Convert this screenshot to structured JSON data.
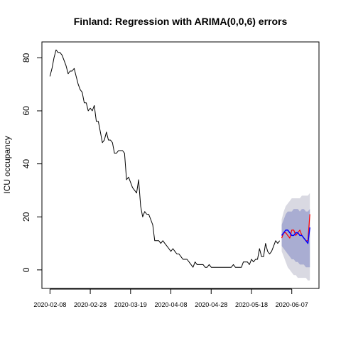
{
  "chart_data": {
    "type": "line",
    "title": "Finland: Regression with ARIMA(0,0,6) errors",
    "xlabel": "",
    "ylabel": "ICU occupancy",
    "x_start": "2020-02-08",
    "x_tick_labels": [
      "2020-02-08",
      "2020-02-28",
      "2020-03-19",
      "2020-04-08",
      "2020-04-28",
      "2020-05-18",
      "2020-06-07"
    ],
    "y_ticks": [
      0,
      20,
      40,
      60,
      80
    ],
    "ylim": [
      -7,
      86
    ],
    "grid": false,
    "observed": [
      73,
      76,
      80,
      83,
      82,
      82,
      81,
      79,
      77,
      74,
      75,
      75,
      76,
      73,
      70,
      68,
      67,
      63,
      63,
      60,
      61,
      60,
      62,
      56,
      56,
      52,
      48,
      49,
      52,
      49,
      49,
      48,
      44,
      44,
      45,
      45,
      45,
      44,
      34,
      35,
      33,
      31,
      30,
      29,
      34,
      24,
      20,
      22,
      21,
      21,
      19,
      17,
      11,
      11,
      11,
      10,
      11,
      10,
      9,
      8,
      7,
      8,
      7,
      6,
      6,
      5,
      4,
      4,
      4,
      3,
      2,
      1,
      3,
      2,
      2,
      2,
      2,
      1,
      1,
      2,
      1,
      1,
      1,
      1,
      1,
      1,
      1,
      1,
      1,
      1,
      1,
      2,
      1,
      1,
      1,
      1,
      3,
      3,
      3,
      2,
      4,
      3,
      4,
      4,
      8,
      5,
      5,
      10,
      7,
      6,
      7,
      9,
      11,
      10,
      11
    ],
    "actual_test": [
      12,
      14,
      14,
      13,
      12,
      15,
      15,
      13,
      14,
      15,
      13,
      12,
      11,
      11,
      21
    ],
    "forecast": [
      13,
      14,
      15,
      15,
      14,
      13,
      13,
      14,
      14,
      13,
      13,
      12,
      11,
      10,
      16
    ],
    "interval_80": {
      "lower": [
        9,
        8,
        7,
        6,
        5,
        4,
        4,
        3,
        3,
        2,
        2,
        2,
        1,
        1,
        1
      ],
      "upper": [
        17,
        19,
        21,
        22,
        22,
        22,
        23,
        23,
        23,
        22,
        23,
        23,
        22,
        22,
        23
      ]
    },
    "interval_95": {
      "lower": [
        7,
        5,
        3,
        1,
        0,
        -1,
        -2,
        -2,
        -3,
        -3,
        -3,
        -3,
        -3,
        -4,
        -4
      ],
      "upper": [
        19,
        22,
        24,
        25,
        26,
        27,
        27,
        27,
        27,
        27,
        28,
        28,
        28,
        28,
        29
      ]
    },
    "colors": {
      "observed": "#000000",
      "actual_test": "#ff0000",
      "forecast": "#0000ff",
      "interval_80": "#a9add2",
      "interval_95": "#d9d9e2"
    }
  }
}
